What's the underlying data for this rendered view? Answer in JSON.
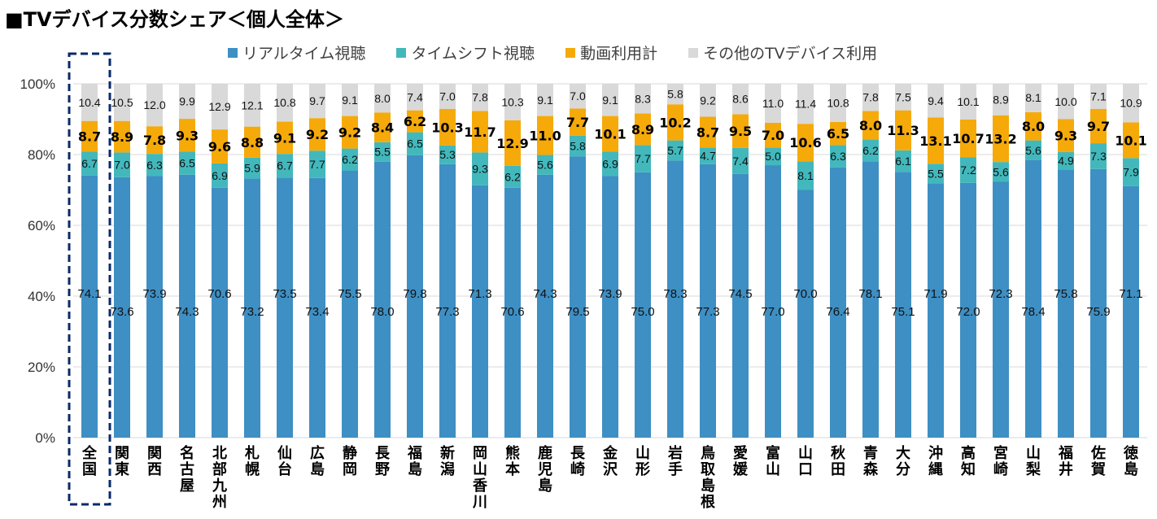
{
  "title": "■TVデバイス分数シェア＜個人全体＞",
  "chart_data": {
    "type": "bar",
    "stacked": true,
    "title": "■TVデバイス分数シェア＜個人全体＞",
    "xlabel": "",
    "ylabel": "",
    "ylim": [
      0,
      100
    ],
    "yticks": [
      "0%",
      "20%",
      "40%",
      "60%",
      "80%",
      "100%"
    ],
    "ytick_values": [
      0,
      20,
      40,
      60,
      80,
      100
    ],
    "grid": true,
    "legend_position": "top",
    "highlighted_category": "全国",
    "categories": [
      "全国",
      "関東",
      "関西",
      "名古屋",
      "北部九州",
      "札幌",
      "仙台",
      "広島",
      "静岡",
      "長野",
      "福島",
      "新潟",
      "岡山香川",
      "熊本",
      "鹿児島",
      "長崎",
      "金沢",
      "山形",
      "岩手",
      "鳥取島根",
      "愛媛",
      "富山",
      "山口",
      "秋田",
      "青森",
      "大分",
      "沖縄",
      "高知",
      "宮崎",
      "山梨",
      "福井",
      "佐賀",
      "徳島"
    ],
    "series": [
      {
        "name": "リアルタイム視聴",
        "color": "#3E8FC3",
        "values": [
          74.1,
          73.6,
          73.9,
          74.3,
          70.6,
          73.2,
          73.5,
          73.4,
          75.5,
          78.0,
          79.8,
          77.3,
          71.3,
          70.6,
          74.3,
          79.5,
          73.9,
          75.0,
          78.3,
          77.3,
          74.5,
          77.0,
          70.0,
          76.4,
          78.1,
          75.1,
          71.9,
          72.0,
          72.3,
          78.4,
          75.8,
          75.9,
          71.1
        ]
      },
      {
        "name": "タイムシフト視聴",
        "color": "#42B8BC",
        "values": [
          6.7,
          7.0,
          6.3,
          6.5,
          6.9,
          5.9,
          6.7,
          7.7,
          6.2,
          5.5,
          6.5,
          5.3,
          9.3,
          6.2,
          5.6,
          5.8,
          6.9,
          7.7,
          5.7,
          4.7,
          7.4,
          5.0,
          8.1,
          6.3,
          6.2,
          6.1,
          5.5,
          7.2,
          5.6,
          5.6,
          4.9,
          7.3,
          7.9
        ]
      },
      {
        "name": "動画利用計",
        "color": "#F5AA0A",
        "values": [
          8.7,
          8.9,
          7.8,
          9.3,
          9.6,
          8.8,
          9.1,
          9.2,
          9.2,
          8.4,
          6.2,
          10.3,
          11.7,
          12.9,
          11.0,
          7.7,
          10.1,
          8.9,
          10.2,
          8.7,
          9.5,
          7.0,
          10.6,
          6.5,
          8.0,
          11.3,
          13.1,
          10.7,
          13.2,
          8.0,
          9.3,
          9.7,
          10.1
        ]
      },
      {
        "name": "その他のTVデバイス利用",
        "color": "#D9D9D9",
        "values": [
          10.4,
          10.5,
          12.0,
          9.9,
          12.9,
          12.1,
          10.8,
          9.7,
          9.1,
          8.0,
          7.4,
          7.0,
          7.8,
          10.3,
          9.1,
          7.0,
          9.1,
          8.3,
          5.8,
          9.2,
          8.6,
          11.0,
          11.4,
          10.8,
          7.8,
          7.5,
          9.4,
          10.1,
          8.9,
          8.1,
          10.0,
          7.1,
          10.9
        ]
      }
    ]
  }
}
